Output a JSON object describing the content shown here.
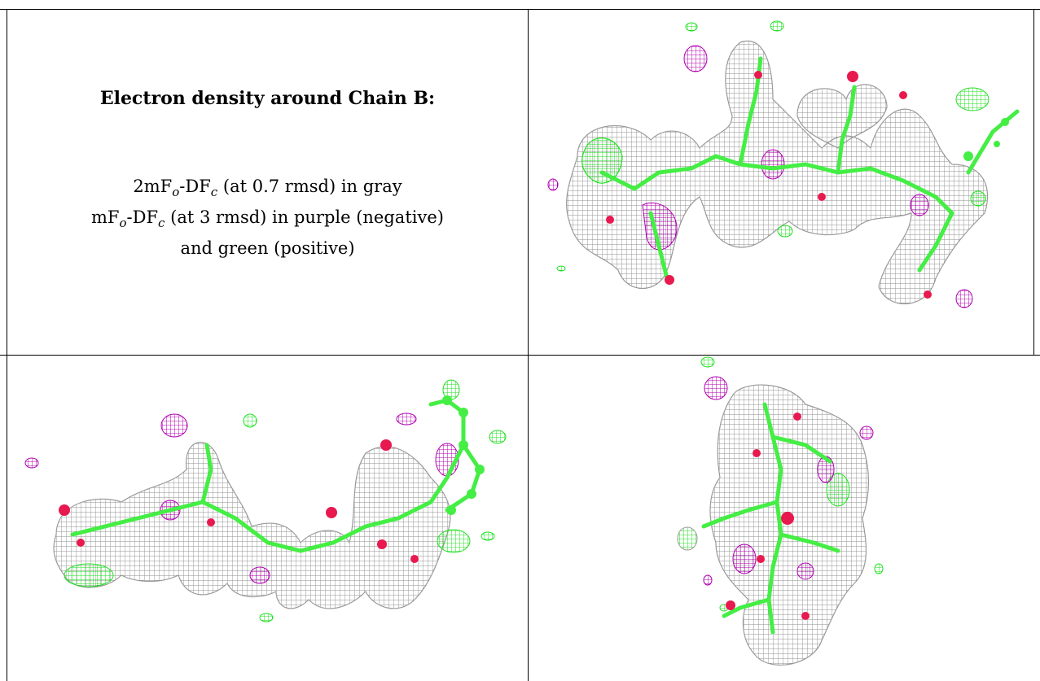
{
  "caption": {
    "title": "Electron density around Chain B:",
    "line1": {
      "pre": "2mF",
      "sub1": "o",
      "mid": "-DF",
      "sub2": "c",
      "post": " (at 0.7 rmsd) in gray"
    },
    "line2": {
      "pre": "mF",
      "sub1": "o",
      "mid": "-DF",
      "sub2": "c",
      "post": " (at 3 rmsd) in purple (negative)"
    },
    "line3": "and green (positive)"
  },
  "colors": {
    "mesh_gray": "#9a9a9a",
    "negative": "#b000b0",
    "positive": "#22e022",
    "model_green": "#44ee44",
    "oxygen": "#e8194f"
  },
  "panels": [
    "density-view-top-right",
    "density-view-bottom-left",
    "density-view-bottom-right"
  ]
}
